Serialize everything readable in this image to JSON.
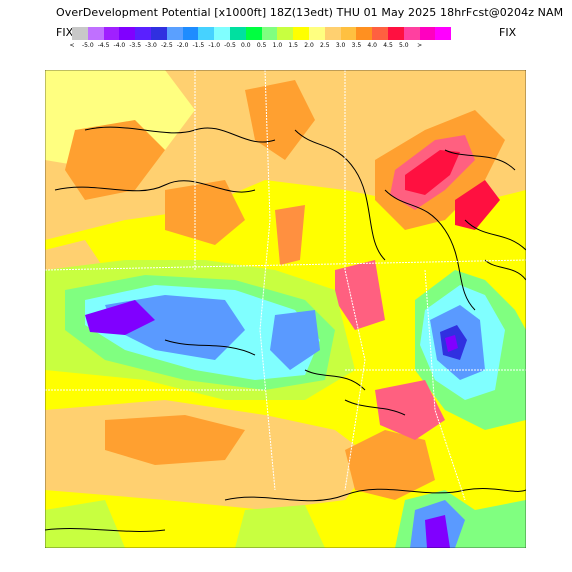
{
  "header": {
    "title": "OverDevelopment Potential  [x1000ft]  18Z(13edt)  THU 01 May 2025  18hrFcst@0204z  NAM",
    "fix_left": "FIX",
    "fix_right": "FIX"
  },
  "colorbar": {
    "swatches": [
      "#c8c8c8",
      "#c070ff",
      "#a020ff",
      "#8000ff",
      "#5a20ff",
      "#3030e0",
      "#5aa0ff",
      "#1e8cff",
      "#46d2ff",
      "#80ffff",
      "#00e0a0",
      "#00ff40",
      "#80ff80",
      "#c8ff40",
      "#ffff00",
      "#ffff80",
      "#ffd070",
      "#ffc040",
      "#ff9020",
      "#ff6040",
      "#ff1040",
      "#ff40a0",
      "#ff00c0",
      "#ff00ff"
    ],
    "labels": [
      "<",
      "-5.0",
      "-4.5",
      "-4.0",
      "-3.5",
      "-3.0",
      "-2.5",
      "-2.0",
      "-1.5",
      "-1.0",
      "-0.5",
      "0.0",
      "0.5",
      "1.0",
      "1.5",
      "2.0",
      "2.5",
      "3.0",
      "3.5",
      "4.0",
      "4.5",
      "5.0",
      ">"
    ]
  },
  "map": {
    "field_colors": {
      "yellow": "#ffff00",
      "light_yellow": "#ffff80",
      "tan": "#ffd070",
      "orange": "#ffa030",
      "red": "#ff1040",
      "pink": "#ff6080",
      "lime": "#c8ff40",
      "green": "#80ff80",
      "cyan": "#46d2ff",
      "aqua": "#80ffff",
      "blue": "#5a9aff",
      "dblue": "#3030e0",
      "purple": "#8000ff",
      "violet": "#c070ff"
    }
  }
}
